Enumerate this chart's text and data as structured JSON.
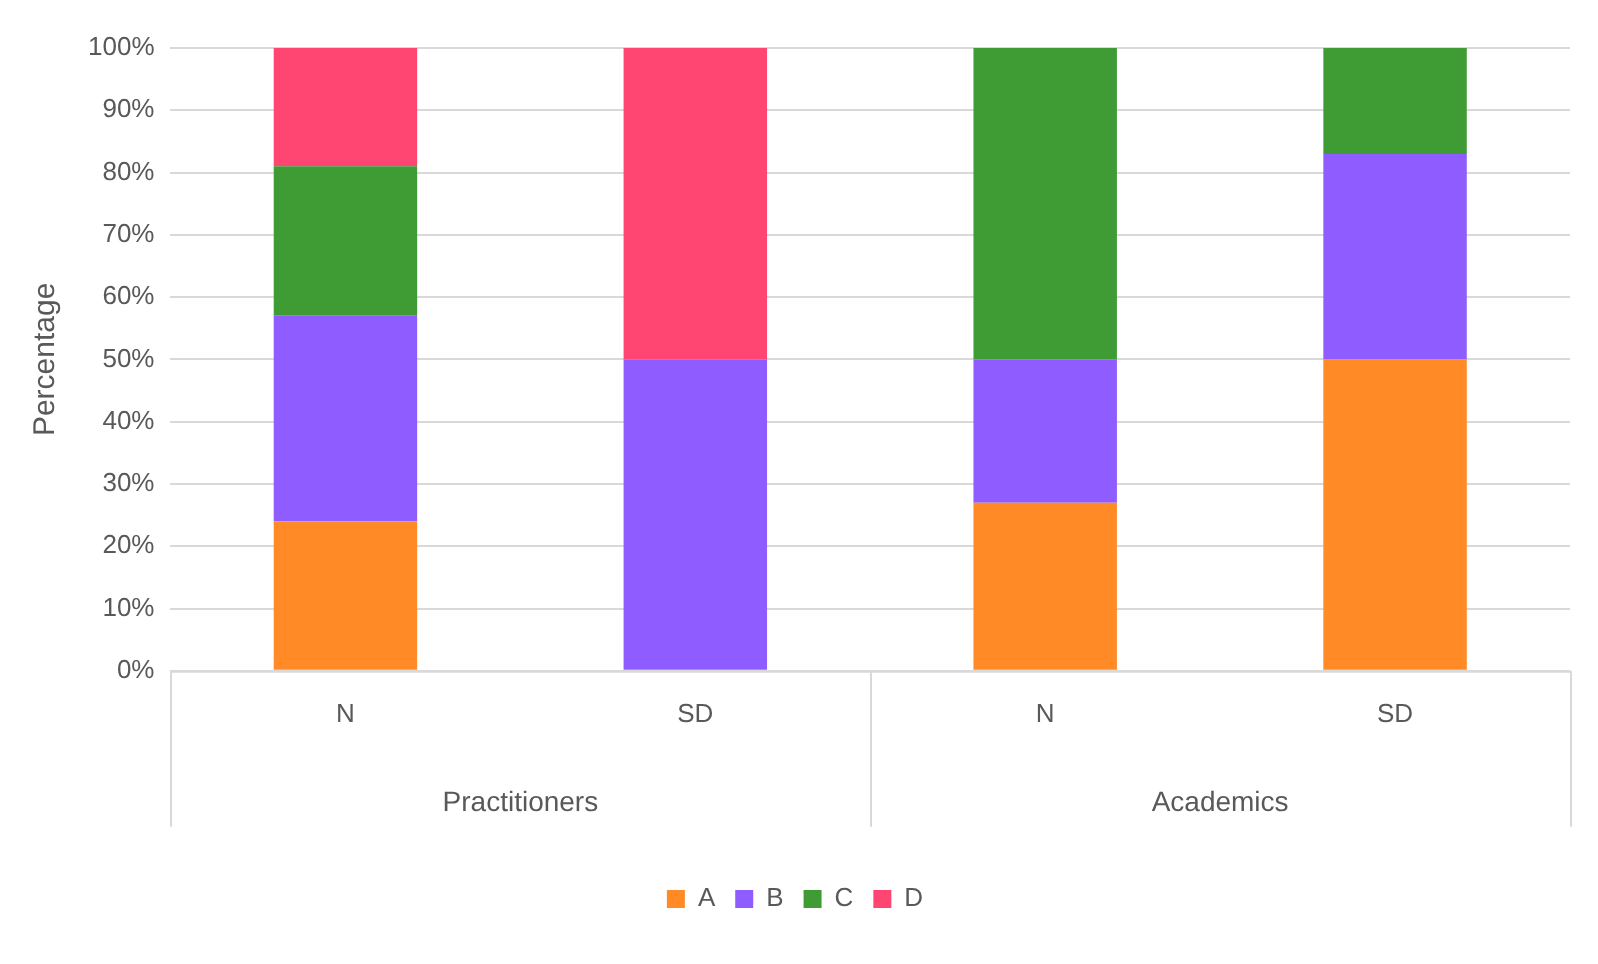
{
  "chart_data": {
    "type": "bar",
    "stacked": true,
    "ylabel": "Percentage",
    "categories": [
      "N",
      "SD",
      "N",
      "SD"
    ],
    "annotations": [
      "Practitioners",
      "Academics"
    ],
    "series": [
      {
        "name": "A",
        "color": "#ff8a26",
        "values": [
          24,
          0,
          27,
          50
        ]
      },
      {
        "name": "B",
        "color": "#8f5cff",
        "values": [
          33,
          50,
          23,
          33
        ]
      },
      {
        "name": "C",
        "color": "#3f9c35",
        "values": [
          24,
          0,
          50,
          17
        ]
      },
      {
        "name": "D",
        "color": "#ff4571",
        "values": [
          19,
          50,
          0,
          0
        ]
      }
    ],
    "ylim": [
      0,
      100
    ],
    "yticks": [
      {
        "value": 0,
        "label": "0%"
      },
      {
        "value": 10,
        "label": "10%"
      },
      {
        "value": 20,
        "label": "20%"
      },
      {
        "value": 30,
        "label": "30%"
      },
      {
        "value": 40,
        "label": "40%"
      },
      {
        "value": 50,
        "label": "50%"
      },
      {
        "value": 60,
        "label": "60%"
      },
      {
        "value": 70,
        "label": "70%"
      },
      {
        "value": 80,
        "label": "80%"
      },
      {
        "value": 90,
        "label": "90%"
      },
      {
        "value": 100,
        "label": "100%"
      }
    ],
    "grid": "y",
    "legend": "bottom"
  }
}
